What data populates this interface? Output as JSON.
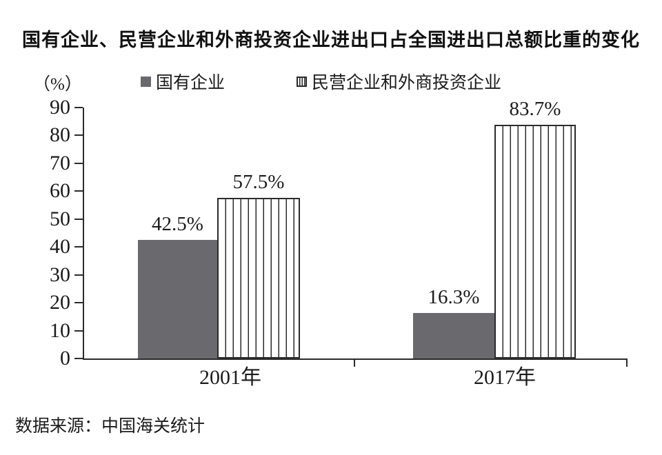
{
  "title": "国有企业、民营企业和外商投资企业进出口占全国进出口总额比重的变化",
  "unit_label": "（%）",
  "legend": [
    {
      "label": "国有企业",
      "swatch": "solid"
    },
    {
      "label": "民营企业和外商投资企业",
      "swatch": "striped"
    }
  ],
  "source": "数据来源：中国海关统计",
  "colors": {
    "solid_bar": "#6a6a6e",
    "stripe_line": "#2a2a2a",
    "axis": "#2a2a2a",
    "text": "#1b1b1b"
  },
  "chart_data": {
    "type": "bar",
    "title": "国有企业、民营企业和外商投资企业进出口占全国进出口总额比重的变化",
    "categories": [
      "2001年",
      "2017年"
    ],
    "series": [
      {
        "name": "国有企业",
        "style": "solid",
        "values": [
          42.5,
          16.3
        ],
        "labels": [
          "42.5%",
          "16.3%"
        ]
      },
      {
        "name": "民营企业和外商投资企业",
        "style": "striped",
        "values": [
          57.5,
          83.7
        ],
        "labels": [
          "57.5%",
          "83.7%"
        ]
      }
    ],
    "xlabel": "",
    "ylabel": "（%）",
    "ylim": [
      0,
      90
    ],
    "y_ticks": [
      0,
      10,
      20,
      30,
      40,
      50,
      60,
      70,
      80,
      90
    ],
    "grid": false,
    "legend_position": "top",
    "source": "数据来源：中国海关统计"
  }
}
